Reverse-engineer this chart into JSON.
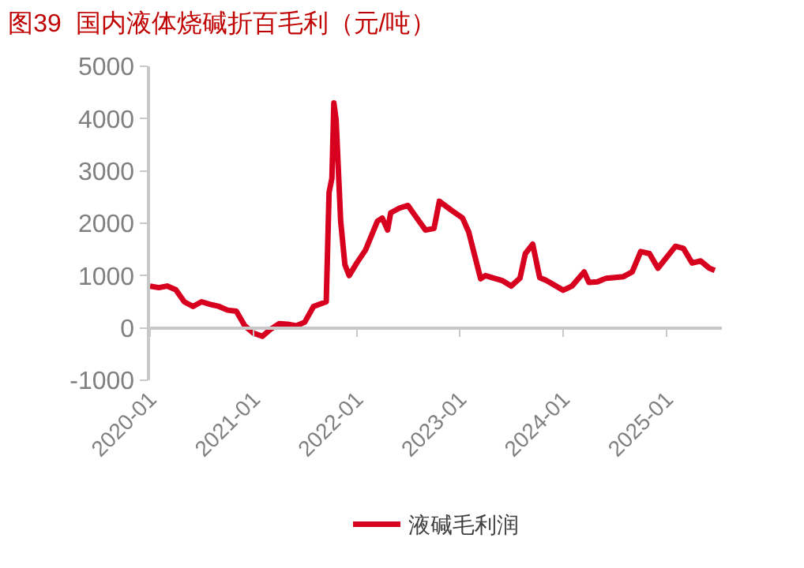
{
  "chart_data": {
    "type": "line",
    "title": "图39  国内液体烧碱折百毛利（元/吨）",
    "x": [
      "2020-01",
      "2020-02",
      "2020-03",
      "2020-04",
      "2020-05",
      "2020-06",
      "2020-07",
      "2020-08",
      "2020-09",
      "2020-10",
      "2020-11",
      "2020-12",
      "2021-01",
      "2021-02",
      "2021-03",
      "2021-04",
      "2021-05",
      "2021-06",
      "2021-07",
      "2021-08",
      "2021-09-15",
      "2021-09-25",
      "2021-10-05",
      "2021-10-12",
      "2021-10-20",
      "2021-11-05",
      "2021-11-20",
      "2021-12-05",
      "2022-01",
      "2022-02",
      "2022-03-15",
      "2022-04-01",
      "2022-04-20",
      "2022-05",
      "2022-06",
      "2022-07",
      "2022-08",
      "2022-09",
      "2022-10",
      "2022-10-20",
      "2022-12",
      "2023-01-10",
      "2023-02",
      "2023-03-15",
      "2023-04",
      "2023-05",
      "2023-06",
      "2023-07",
      "2023-08",
      "2023-08-20",
      "2023-09-15",
      "2023-10-10",
      "2023-11-01",
      "2024-01-01",
      "2024-02",
      "2024-03-15",
      "2024-04",
      "2024-05",
      "2024-06",
      "2024-08",
      "2024-09",
      "2024-10",
      "2024-11",
      "2024-12",
      "2025-02",
      "2025-03",
      "2025-04",
      "2025-05",
      "2025-06",
      "2025-06-20"
    ],
    "series": [
      {
        "name": "液碱毛利润",
        "color": "#d7001f",
        "values": [
          800,
          770,
          800,
          730,
          500,
          410,
          500,
          450,
          410,
          340,
          320,
          40,
          -100,
          -160,
          -30,
          80,
          70,
          40,
          110,
          410,
          500,
          2590,
          2860,
          4300,
          3970,
          2040,
          1210,
          1000,
          1240,
          1490,
          2040,
          2100,
          1870,
          2200,
          2290,
          2340,
          2100,
          1870,
          1900,
          2420,
          2250,
          2100,
          1830,
          940,
          1000,
          950,
          900,
          800,
          950,
          1420,
          1600,
          960,
          910,
          720,
          800,
          1070,
          870,
          880,
          950,
          980,
          1070,
          1460,
          1420,
          1140,
          1560,
          1520,
          1240,
          1280,
          1140,
          1100
        ]
      }
    ],
    "xlim": [
      "2020-01",
      "2025-07-15"
    ],
    "xticks": [
      "2020-01",
      "2021-01",
      "2022-01",
      "2023-01",
      "2024-01",
      "2025-01"
    ],
    "ylim": [
      -1000,
      5000
    ],
    "yticks": [
      -1000,
      0,
      1000,
      2000,
      3000,
      4000,
      5000
    ],
    "legend": "bottom",
    "marker": "none",
    "line_style": "solid"
  }
}
